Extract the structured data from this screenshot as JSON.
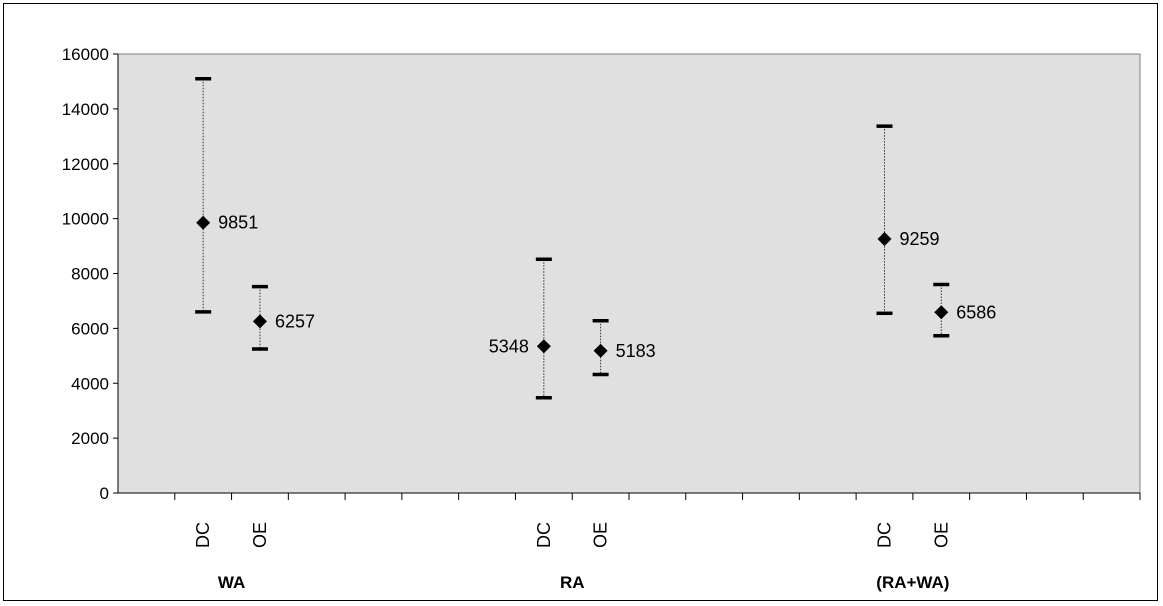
{
  "chart_data": {
    "type": "errorbar",
    "y_ticks": [
      0,
      2000,
      4000,
      6000,
      8000,
      10000,
      12000,
      14000,
      16000
    ],
    "ylim": [
      0,
      16000
    ],
    "plot_bg_color": "#e0e0e0",
    "marker_color": "#000000",
    "slots": 18,
    "groups": [
      {
        "label": "WA",
        "slot_center": 1.5
      },
      {
        "label": "RA",
        "slot_center": 7.5
      },
      {
        "label": "(RA+WA)",
        "slot_center": 13.5
      }
    ],
    "points": [
      {
        "group": "WA",
        "category": "DC",
        "slot": 1,
        "value": 9851,
        "low": 6600,
        "high": 15100,
        "label_side": "right"
      },
      {
        "group": "WA",
        "category": "OE",
        "slot": 2,
        "value": 6257,
        "low": 5250,
        "high": 7520,
        "label_side": "right"
      },
      {
        "group": "RA",
        "category": "DC",
        "slot": 7,
        "value": 5348,
        "low": 3470,
        "high": 8520,
        "label_side": "left"
      },
      {
        "group": "RA",
        "category": "OE",
        "slot": 8,
        "value": 5183,
        "low": 4320,
        "high": 6280,
        "label_side": "right"
      },
      {
        "group": "(RA+WA)",
        "category": "DC",
        "slot": 13,
        "value": 9259,
        "low": 6550,
        "high": 13370,
        "label_side": "right"
      },
      {
        "group": "(RA+WA)",
        "category": "OE",
        "slot": 14,
        "value": 6586,
        "low": 5730,
        "high": 7600,
        "label_side": "right"
      }
    ]
  }
}
